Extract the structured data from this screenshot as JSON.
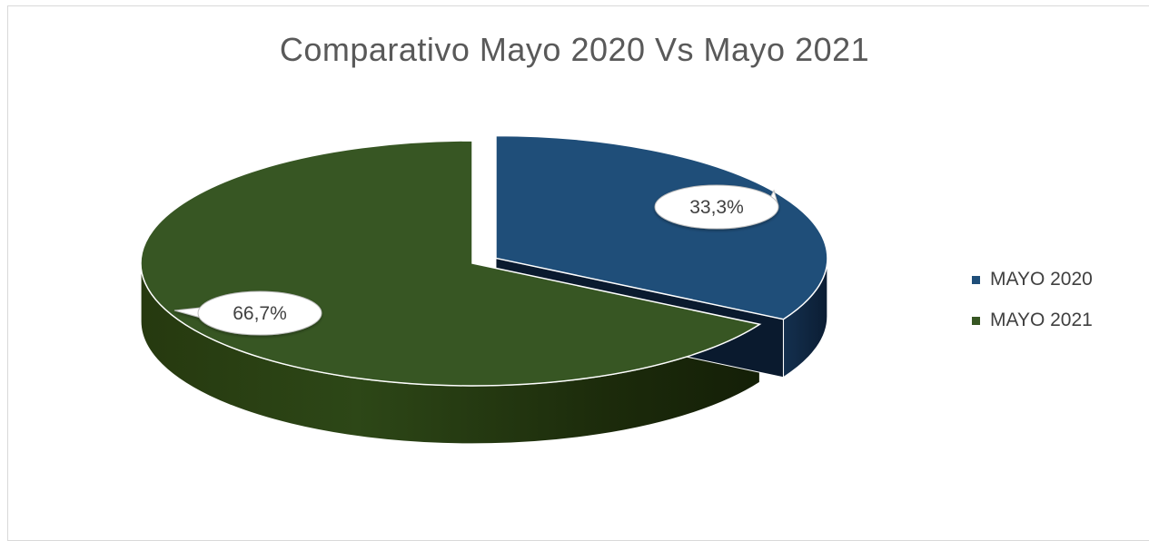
{
  "chart_data": {
    "type": "pie",
    "title": "Comparativo Mayo 2020 Vs Mayo 2021",
    "categories": [
      "MAYO 2020",
      "MAYO 2021"
    ],
    "values": [
      33.3,
      66.7
    ],
    "data_labels": [
      "33,3%",
      "66,7%"
    ],
    "colors": [
      "#1f4e79",
      "#375623"
    ],
    "exploded": "MAYO 2020",
    "style": "3d",
    "legend_position": "right"
  }
}
